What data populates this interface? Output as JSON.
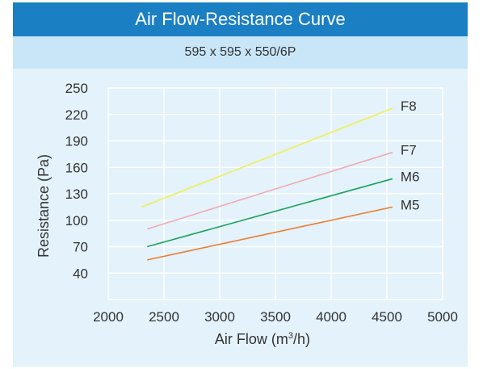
{
  "chart_data": {
    "type": "line",
    "title": "Air Flow-Resistance Curve",
    "subtitle": "595 x 595 x 550/6P",
    "xlabel_main": "Air Flow (m",
    "xlabel_sup": "3",
    "xlabel_tail": "/h)",
    "ylabel": "Resistance (Pa)",
    "xlim": [
      2000,
      5000
    ],
    "ylim": [
      10,
      250
    ],
    "x_ticks": [
      "2000",
      "2500",
      "3000",
      "3500",
      "4000",
      "4500",
      "5000"
    ],
    "x_tick_values": [
      2000,
      2500,
      3000,
      3500,
      4000,
      4500,
      5000
    ],
    "y_ticks": [
      "250",
      "220",
      "190",
      "160",
      "130",
      "100",
      "70",
      "40"
    ],
    "y_tick_values": [
      250,
      220,
      190,
      160,
      130,
      100,
      70,
      40
    ],
    "grid": true,
    "series": [
      {
        "name": "F8",
        "color": "#f0f050",
        "x": [
          2300,
          4550
        ],
        "y": [
          115,
          227
        ]
      },
      {
        "name": "F7",
        "color": "#f2aab0",
        "x": [
          2350,
          4550
        ],
        "y": [
          90,
          177
        ]
      },
      {
        "name": "M6",
        "color": "#1aa35a",
        "x": [
          2350,
          4550
        ],
        "y": [
          70,
          147
        ]
      },
      {
        "name": "M5",
        "color": "#ee7c2c",
        "x": [
          2350,
          4550
        ],
        "y": [
          55,
          115
        ]
      }
    ]
  }
}
